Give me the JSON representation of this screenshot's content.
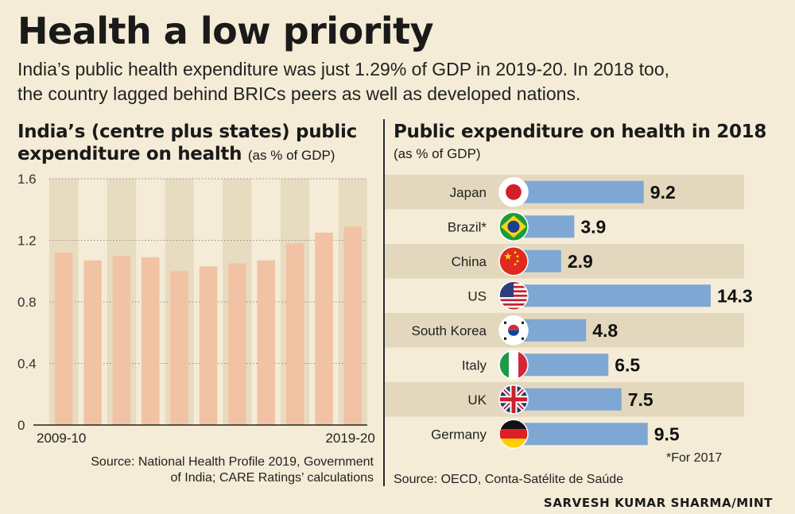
{
  "title": "Health a low priority",
  "subtitle_lines": [
    "India’s public health expenditure was just 1.29% of GDP in 2019-20. In 2018 too,",
    "the country lagged behind BRICs peers as well as developed nations."
  ],
  "left_panel": {
    "title_line1": "India’s (centre plus states) public",
    "title_line2": "expenditure on health",
    "title_unit": "(as % of GDP)",
    "source_line1": "Source: National Health Profile 2019, Government",
    "source_line2": "of India; CARE Ratings’ calculations"
  },
  "right_panel": {
    "title": "Public expenditure on health in 2018",
    "title_unit": "(as % of GDP)",
    "footnote": "*For 2017",
    "source": "Source: OECD, Conta-Satélite de Saúde"
  },
  "credit": "SARVESH KUMAR SHARMA/MINT",
  "colors": {
    "background": "#f4ecd6",
    "left_bar": "#f2c2a5",
    "stripe": "#e8dcc0",
    "right_bar": "#7fa7d3",
    "row_band": "#e3d8bd"
  },
  "chart_data": [
    {
      "type": "bar",
      "title": "India’s (centre plus states) public expenditure on health",
      "ylabel": "as % of GDP",
      "ylim": [
        0,
        1.6
      ],
      "yticks": [
        "0",
        "0.4",
        "0.8",
        "1.2",
        "1.6"
      ],
      "x_tick_labels": [
        "2009-10",
        "2019-20"
      ],
      "categories": [
        "2009-10",
        "",
        "",
        "",
        "",
        "",
        "",
        "",
        "",
        "",
        "2019-20"
      ],
      "values": [
        1.12,
        1.07,
        1.1,
        1.09,
        1.0,
        1.03,
        1.05,
        1.07,
        1.18,
        1.25,
        1.29
      ],
      "grid": "dotted horizontal"
    },
    {
      "type": "bar",
      "orientation": "horizontal",
      "title": "Public expenditure on health in 2018",
      "ylabel": "as % of GDP",
      "categories": [
        "Japan",
        "Brazil*",
        "China",
        "US",
        "South Korea",
        "Italy",
        "UK",
        "Germany"
      ],
      "flags": [
        "japan-flag-icon",
        "brazil-flag-icon",
        "china-flag-icon",
        "us-flag-icon",
        "south-korea-flag-icon",
        "italy-flag-icon",
        "uk-flag-icon",
        "germany-flag-icon"
      ],
      "values": [
        9.2,
        3.9,
        2.9,
        14.3,
        4.8,
        6.5,
        7.5,
        9.5
      ],
      "value_labels": [
        "9.2",
        "3.9",
        "2.9",
        "14.3",
        "4.8",
        "6.5",
        "7.5",
        "9.5"
      ]
    }
  ]
}
